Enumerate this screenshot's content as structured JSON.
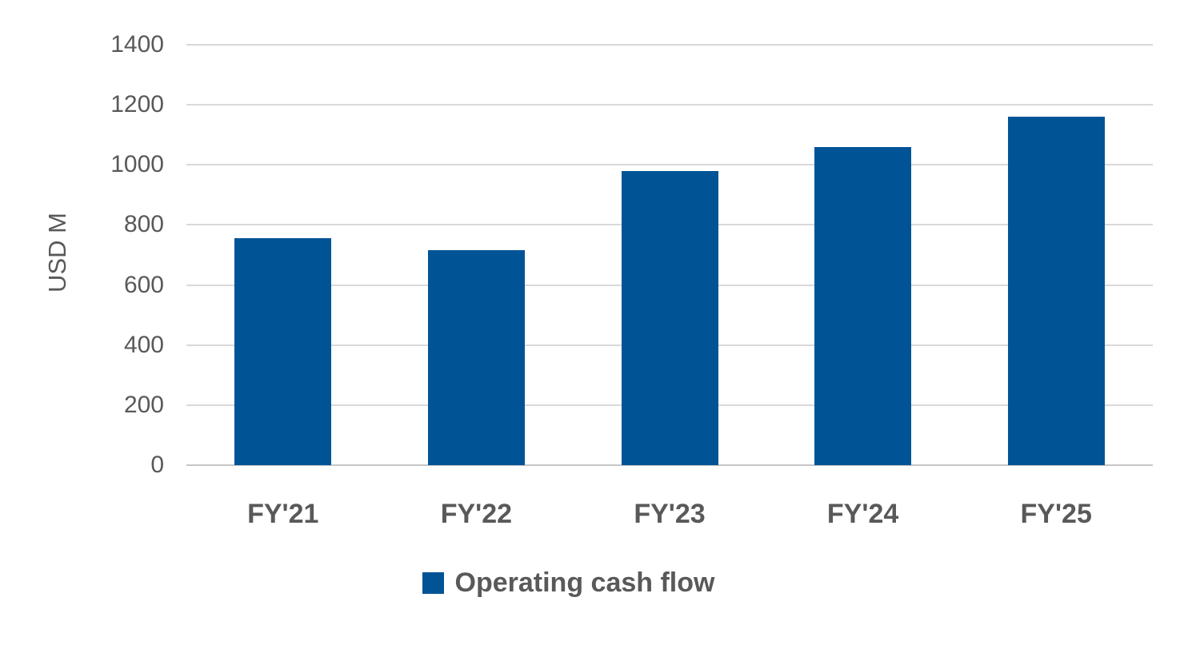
{
  "chart_data": {
    "type": "bar",
    "title": "",
    "categories": [
      "FY'21",
      "FY'22",
      "FY'23",
      "FY'24",
      "FY'25"
    ],
    "series": [
      {
        "name": "Operating cash flow",
        "values": [
          755,
          715,
          980,
          1060,
          1160
        ]
      }
    ],
    "xlabel": "",
    "ylabel": "USD M",
    "ylim": [
      0,
      1400
    ],
    "ytick_interval": 200,
    "yticks": [
      0,
      200,
      400,
      600,
      800,
      1000,
      1200,
      1400
    ],
    "grid": "horizontal",
    "legend_position": "bottom-center",
    "bar_color": "#005496",
    "text_color": "#595959",
    "gridline_color": "#d9d9d9",
    "baseline_color": "#c6c6c6",
    "background_color": "#ffffff"
  }
}
